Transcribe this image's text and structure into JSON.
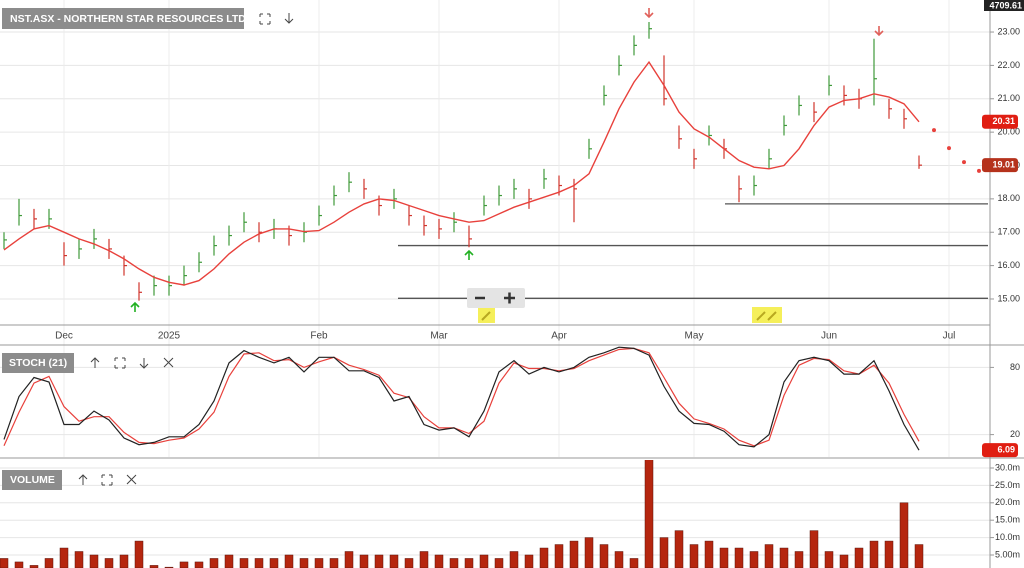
{
  "chart_data": [
    {
      "type": "ohlc",
      "title": "NST.ASX - NORTHERN STAR RESOURCES LTD",
      "categories": [
        null,
        null,
        null,
        null,
        "Dec",
        null,
        null,
        null,
        null,
        null,
        null,
        "2025",
        null,
        null,
        null,
        null,
        null,
        null,
        null,
        null,
        null,
        "Feb",
        null,
        null,
        null,
        null,
        null,
        null,
        null,
        "Mar",
        null,
        null,
        null,
        null,
        null,
        null,
        null,
        "Apr",
        null,
        null,
        null,
        null,
        null,
        null,
        null,
        null,
        "May",
        null,
        null,
        null,
        null,
        null,
        null,
        null,
        null,
        "Jun",
        null,
        null,
        null,
        null,
        null,
        null,
        null,
        "Jul",
        null,
        null
      ],
      "high": [
        17.0,
        18.0,
        17.7,
        17.7,
        16.7,
        16.8,
        17.1,
        16.8,
        16.3,
        15.5,
        15.7,
        15.7,
        16.0,
        16.4,
        16.9,
        17.2,
        17.6,
        17.3,
        17.4,
        17.2,
        17.3,
        17.8,
        18.4,
        18.8,
        18.6,
        18.1,
        18.3,
        17.8,
        17.5,
        17.4,
        17.6,
        17.2,
        18.1,
        18.4,
        18.6,
        18.3,
        18.9,
        18.7,
        18.6,
        19.8,
        21.4,
        22.3,
        22.9,
        23.3,
        22.3,
        20.2,
        19.5,
        20.2,
        19.8,
        18.7,
        18.7,
        19.5,
        20.5,
        21.1,
        20.9,
        21.7,
        21.4,
        21.3,
        22.8,
        21.0,
        20.7,
        19.3,
        null,
        null,
        null,
        null
      ],
      "low": [
        16.5,
        17.2,
        17.1,
        17.1,
        16.0,
        16.2,
        16.5,
        16.2,
        15.7,
        14.95,
        15.1,
        15.1,
        15.4,
        15.8,
        16.3,
        16.6,
        17.0,
        16.7,
        16.8,
        16.6,
        16.7,
        17.2,
        17.8,
        18.2,
        18.0,
        17.5,
        17.7,
        17.2,
        16.9,
        16.8,
        17.0,
        16.55,
        17.5,
        17.8,
        18.0,
        17.7,
        18.3,
        18.1,
        17.3,
        19.2,
        20.8,
        21.7,
        22.3,
        22.8,
        20.8,
        19.5,
        18.9,
        19.6,
        19.2,
        17.9,
        18.1,
        18.9,
        19.9,
        20.5,
        20.3,
        21.1,
        20.8,
        20.7,
        20.8,
        20.4,
        20.1,
        18.9,
        null,
        null,
        null,
        null
      ],
      "close": [
        16.77,
        17.5,
        17.4,
        17.4,
        16.3,
        16.5,
        16.8,
        16.5,
        16.0,
        15.2,
        15.4,
        15.4,
        15.7,
        16.1,
        16.6,
        16.9,
        17.3,
        17.0,
        17.1,
        16.9,
        17.0,
        17.5,
        18.1,
        18.5,
        18.3,
        17.8,
        18.0,
        17.5,
        17.2,
        17.1,
        17.3,
        16.8,
        17.8,
        18.1,
        18.3,
        18.0,
        18.6,
        18.4,
        18.3,
        19.5,
        21.1,
        22.0,
        22.6,
        23.1,
        21.0,
        19.8,
        19.2,
        19.9,
        19.5,
        18.3,
        18.4,
        19.2,
        20.2,
        20.8,
        20.6,
        21.4,
        21.1,
        21.0,
        21.6,
        20.7,
        20.4,
        19.01,
        null,
        null,
        null,
        null
      ],
      "ma": [
        16.47,
        16.8,
        17.1,
        17.2,
        17.0,
        16.8,
        16.65,
        16.45,
        16.2,
        15.9,
        15.65,
        15.5,
        15.42,
        15.55,
        15.9,
        16.35,
        16.7,
        16.95,
        17.1,
        17.1,
        17.02,
        17.05,
        17.3,
        17.6,
        17.85,
        18.0,
        17.95,
        17.8,
        17.65,
        17.5,
        17.4,
        17.3,
        17.35,
        17.55,
        17.75,
        17.9,
        18.05,
        18.2,
        18.4,
        18.75,
        19.7,
        20.7,
        21.5,
        22.1,
        21.4,
        20.6,
        20.1,
        19.85,
        19.5,
        19.15,
        18.95,
        18.9,
        19.0,
        19.5,
        20.2,
        20.75,
        20.95,
        21.0,
        21.15,
        21.05,
        20.85,
        20.31,
        null,
        null,
        null,
        null
      ],
      "ma_projection": [
        null,
        null,
        null,
        null,
        null,
        null,
        null,
        null,
        null,
        null,
        null,
        null,
        null,
        null,
        null,
        null,
        null,
        null,
        null,
        null,
        null,
        null,
        null,
        null,
        null,
        null,
        null,
        null,
        null,
        null,
        null,
        null,
        null,
        null,
        null,
        null,
        null,
        null,
        null,
        null,
        null,
        null,
        null,
        null,
        null,
        null,
        null,
        null,
        null,
        null,
        null,
        null,
        null,
        null,
        null,
        null,
        null,
        null,
        null,
        null,
        null,
        null,
        20.06,
        19.52,
        19.1,
        18.84
      ],
      "levels": [
        17.85,
        16.6,
        15.02
      ],
      "index_value": 4709.61,
      "ylim": [
        14.22,
        23.96
      ],
      "yticks": [
        {
          "value": 15,
          "label": "15.00"
        },
        {
          "value": 16,
          "label": "16.00"
        },
        {
          "value": 17,
          "label": "17.00"
        },
        {
          "value": 18,
          "label": "18.00"
        },
        {
          "value": 19,
          "label": "19.00"
        },
        {
          "value": 20,
          "label": "20.00"
        },
        {
          "value": 21,
          "label": "21.00"
        },
        {
          "value": 22,
          "label": "22.00"
        },
        {
          "value": 23,
          "label": "23.00"
        }
      ],
      "grid": true,
      "up_color": "#3f9a3a",
      "down_color": "#d0342c",
      "ma_color": "#e8413c",
      "level_color": "#555555"
    },
    {
      "type": "line",
      "title": "STOCH (21)",
      "k": [
        15.7,
        54,
        71,
        67,
        29,
        29,
        41,
        33,
        17,
        11,
        13,
        18,
        18,
        29,
        50,
        84,
        95,
        89,
        84,
        89,
        76,
        89,
        89,
        77,
        77,
        71,
        50,
        54,
        29,
        24,
        26,
        18,
        41,
        76,
        86,
        74,
        80,
        76,
        80,
        89,
        93,
        98,
        97,
        91,
        63,
        41,
        30,
        29,
        23,
        11,
        9,
        20,
        67,
        86,
        89,
        86,
        74,
        74,
        86,
        59,
        29,
        6.09,
        null,
        null,
        null,
        null
      ],
      "d": [
        10,
        40,
        66,
        72,
        45,
        32,
        36,
        36,
        22,
        13,
        12,
        15,
        17,
        25,
        40,
        72,
        92,
        93,
        86,
        87,
        80,
        85,
        89,
        82,
        78,
        73,
        57,
        53,
        36,
        26,
        26,
        21,
        32,
        66,
        84,
        79,
        79,
        77,
        79,
        86,
        91,
        96,
        97,
        93,
        71,
        48,
        34,
        30,
        25,
        15,
        10,
        15,
        55,
        82,
        88,
        87,
        77,
        74,
        82,
        66,
        38,
        14,
        null,
        null,
        null,
        null
      ],
      "ylim": [
        0,
        100
      ],
      "yticks": [
        20,
        80
      ],
      "grid": true,
      "k_color": "#222222",
      "d_color": "#e8413c"
    },
    {
      "type": "bar",
      "title": "VOLUME",
      "values": [
        4000000,
        3000000,
        2000000,
        4000000,
        7000000,
        6000000,
        5000000,
        4000000,
        5000000,
        9000000,
        2000000,
        1500000,
        3000000,
        3000000,
        4000000,
        5000000,
        4000000,
        4000000,
        4000000,
        5000000,
        4000000,
        4000000,
        4000000,
        6000000,
        5000000,
        5000000,
        5000000,
        4000000,
        6000000,
        5000000,
        4000000,
        4000000,
        5000000,
        4000000,
        6000000,
        5000000,
        7000000,
        8000000,
        9000000,
        10000000,
        8000000,
        6000000,
        4000000,
        33000000,
        10000000,
        12000000,
        8000000,
        9000000,
        7000000,
        7000000,
        6000000,
        8000000,
        7000000,
        6000000,
        12000000,
        6000000,
        5000000,
        7000000,
        9000000,
        9000000,
        20000000,
        8000000,
        null,
        null,
        null,
        null
      ],
      "ylim": [
        1260000,
        32300000
      ],
      "yticks": [
        {
          "value": 5000000,
          "label": "5.00m"
        },
        {
          "value": 10000000,
          "label": "10.0m"
        },
        {
          "value": 15000000,
          "label": "15.0m"
        },
        {
          "value": 20000000,
          "label": "20.0m"
        },
        {
          "value": 25000000,
          "label": "25.0m"
        },
        {
          "value": 30000000,
          "label": "30.0m"
        }
      ],
      "grid": true,
      "color": "#b5260f"
    }
  ]
}
